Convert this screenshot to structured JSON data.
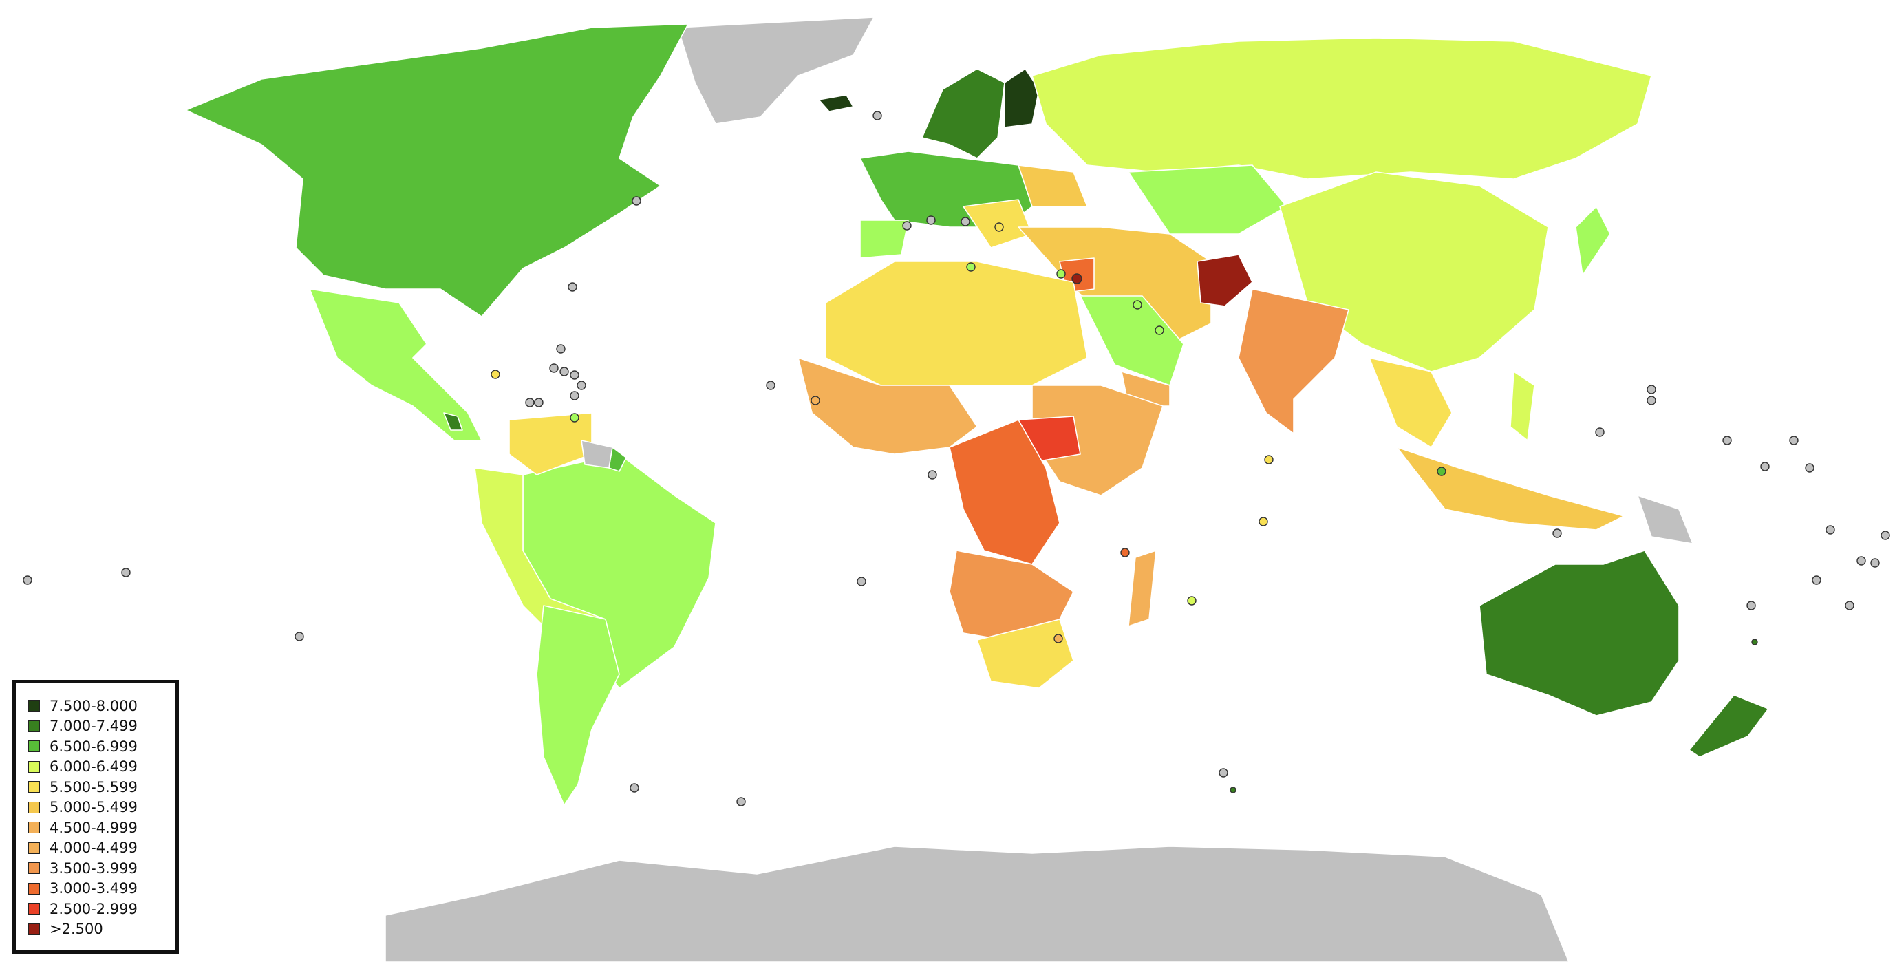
{
  "colors": {
    "c1": "#1f3f12",
    "c2": "#38801f",
    "c3": "#58be38",
    "c4": "#a3fa5c",
    "c5": "#d8fa5a",
    "c6": "#f8e054",
    "c7": "#f5c84e",
    "c8": "#f3b058",
    "c9": "#f0964d",
    "c10": "#ee6b2e",
    "c11": "#ea4127",
    "c12": "#981f13",
    "nodata": "#c0c0c0"
  },
  "legend": {
    "items": [
      {
        "label": "7.500-8.000",
        "color": "#1f3f12"
      },
      {
        "label": "7.000-7.499",
        "color": "#38801f"
      },
      {
        "label": "6.500-6.999",
        "color": "#58be38"
      },
      {
        "label": "6.000-6.499",
        "color": "#d8fa5a"
      },
      {
        "label": "5.500-5.599",
        "color": "#f8e054"
      },
      {
        "label": "5.000-5.499",
        "color": "#f5c84e"
      },
      {
        "label": "4.500-4.999",
        "color": "#f3b058"
      },
      {
        "label": "4.000-4.499",
        "color": "#f3b058"
      },
      {
        "label": "3.500-3.999",
        "color": "#f0964d"
      },
      {
        "label": "3.000-3.499",
        "color": "#ee6b2e"
      },
      {
        "label": "2.500-2.999",
        "color": "#ea4127"
      },
      {
        "label": ">2.500",
        "color": "#981f13"
      }
    ]
  }
}
